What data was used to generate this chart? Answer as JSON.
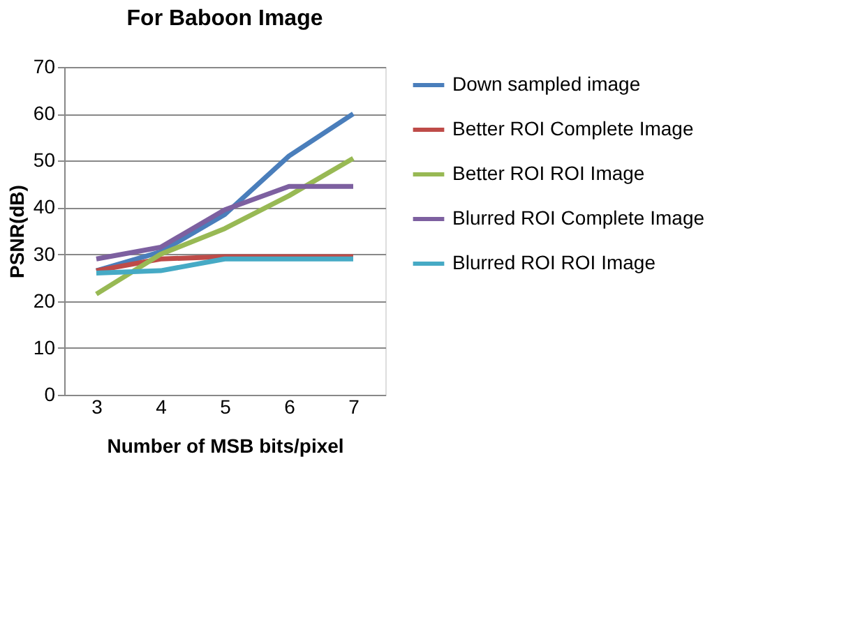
{
  "chart_data": {
    "type": "line",
    "title": "For Baboon Image",
    "xlabel": "Number of MSB bits/pixel",
    "ylabel": "PSNR(dB)",
    "categories": [
      "3",
      "4",
      "5",
      "6",
      "7"
    ],
    "series": [
      {
        "name": "Down sampled image",
        "color": "#4a7ebb",
        "values": [
          26.5,
          30.5,
          38.5,
          51,
          60
        ]
      },
      {
        "name": "Better ROI Complete Image",
        "color": "#be4b48",
        "values": [
          26.5,
          29,
          29.5,
          29.5,
          29.5
        ]
      },
      {
        "name": "Better ROI ROI Image",
        "color": "#98b954",
        "values": [
          21.5,
          30,
          35.5,
          42.5,
          50.5
        ]
      },
      {
        "name": "Blurred ROI Complete Image",
        "color": "#7d60a0",
        "values": [
          29,
          31.5,
          39.5,
          44.5,
          44.5
        ]
      },
      {
        "name": "Blurred ROI ROI Image",
        "color": "#46aac5",
        "values": [
          26,
          26.5,
          29,
          29,
          29
        ]
      }
    ],
    "ylim": [
      0,
      70
    ],
    "yticks": [
      0,
      10,
      20,
      30,
      40,
      50,
      60,
      70
    ],
    "grid": "y",
    "legend": "right",
    "marker": "none",
    "line_style": "solid"
  }
}
